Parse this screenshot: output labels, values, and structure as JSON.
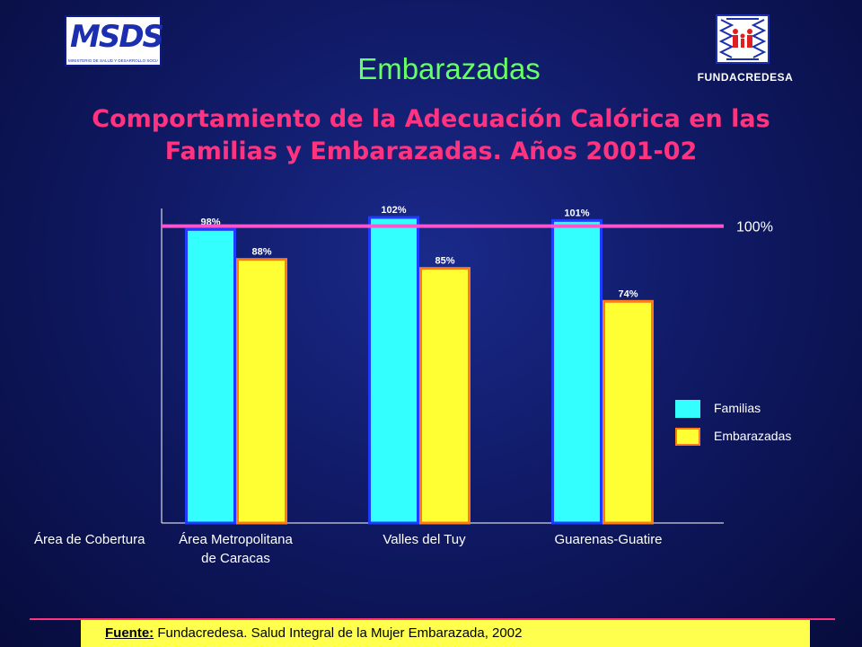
{
  "header": {
    "logo_left": {
      "letters": "MSDS",
      "subtitle": "MINISTERIO DE SALUD Y DESARROLLO SOCIAL"
    },
    "logo_right_text": "FUNDACREDESA",
    "title": "Embarazadas",
    "subtitle": "Comportamiento de la Adecuación Calórica en las Familias y Embarazadas. Años 2001-02"
  },
  "chart_data": {
    "type": "bar",
    "title": "",
    "xlabel": "Área de  Cobertura",
    "ylabel": "",
    "categories": [
      "Área Metropolitana\nde Caracas",
      "Valles del  Tuy",
      "Guarenas-Guatire"
    ],
    "series": [
      {
        "name": "Familias",
        "values": [
          98,
          102,
          101
        ],
        "labels": [
          "98%",
          "102%",
          "101%"
        ],
        "color": "#33ffff",
        "border": "#1e3cff"
      },
      {
        "name": "Embarazadas",
        "values": [
          88,
          85,
          74
        ],
        "labels": [
          "88%",
          "85%",
          "74%"
        ],
        "color": "#ffff33",
        "border": "#ff7a1a"
      }
    ],
    "reference_line": {
      "value": 100,
      "label": "100%",
      "color": "#ff55cc"
    },
    "ylim": [
      0,
      105
    ],
    "grid": false,
    "legend_position": "right"
  },
  "footer": {
    "source_label": "Fuente:",
    "source_text": "Fundacredesa. Salud Integral de la Mujer Embarazada, 2002"
  }
}
